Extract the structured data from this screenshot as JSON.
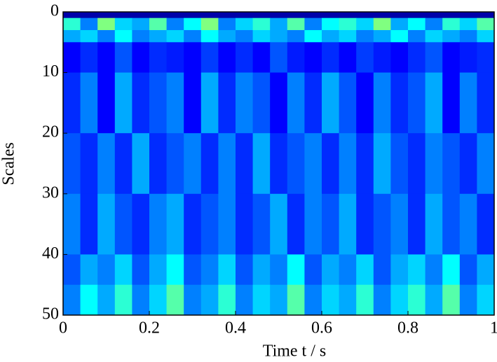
{
  "chart_data": {
    "type": "heatmap",
    "xlabel": "Time t / s",
    "ylabel": "Scales",
    "xlim": [
      0,
      1
    ],
    "xticks": [
      0,
      0.2,
      0.4,
      0.6,
      0.8,
      1
    ],
    "ylim": [
      50,
      0
    ],
    "yticks": [
      0,
      10,
      20,
      30,
      40,
      50
    ],
    "colormap": "jet",
    "zlim": [
      0,
      1.2
    ],
    "xbins": [
      0,
      0.04,
      0.08,
      0.12,
      0.16,
      0.2,
      0.24,
      0.28,
      0.32,
      0.36,
      0.4,
      0.44,
      0.48,
      0.52,
      0.56,
      0.6,
      0.64,
      0.68,
      0.72,
      0.76,
      0.8,
      0.84,
      0.88,
      0.92,
      0.96,
      1
    ],
    "ybins": [
      0,
      1,
      3,
      5,
      10,
      20,
      30,
      40,
      45,
      50
    ],
    "z": [
      [
        0.05,
        0.05,
        0.05,
        0.05,
        0.05,
        0.05,
        0.05,
        0.05,
        0.05,
        0.05,
        0.05,
        0.05,
        0.05,
        0.05,
        0.05,
        0.05,
        0.05,
        0.05,
        0.05,
        0.05,
        0.05,
        0.05,
        0.05,
        0.05,
        0.05
      ],
      [
        0.5,
        0.3,
        0.6,
        0.4,
        0.35,
        0.55,
        0.3,
        0.45,
        0.6,
        0.3,
        0.4,
        0.5,
        0.35,
        0.55,
        0.3,
        0.45,
        0.5,
        0.4,
        0.6,
        0.35,
        0.45,
        0.3,
        0.5,
        0.4,
        0.55
      ],
      [
        0.35,
        0.4,
        0.3,
        0.45,
        0.3,
        0.35,
        0.4,
        0.3,
        0.45,
        0.35,
        0.3,
        0.4,
        0.35,
        0.3,
        0.45,
        0.35,
        0.4,
        0.3,
        0.35,
        0.45,
        0.3,
        0.4,
        0.35,
        0.3,
        0.4
      ],
      [
        0.15,
        0.2,
        0.15,
        0.25,
        0.15,
        0.2,
        0.18,
        0.15,
        0.22,
        0.15,
        0.2,
        0.15,
        0.25,
        0.18,
        0.15,
        0.2,
        0.15,
        0.22,
        0.18,
        0.15,
        0.2,
        0.25,
        0.15,
        0.18,
        0.2
      ],
      [
        0.2,
        0.3,
        0.15,
        0.35,
        0.2,
        0.25,
        0.3,
        0.15,
        0.35,
        0.2,
        0.3,
        0.25,
        0.15,
        0.3,
        0.2,
        0.35,
        0.25,
        0.15,
        0.3,
        0.2,
        0.25,
        0.35,
        0.15,
        0.3,
        0.2
      ],
      [
        0.25,
        0.2,
        0.3,
        0.2,
        0.35,
        0.2,
        0.25,
        0.3,
        0.2,
        0.3,
        0.2,
        0.35,
        0.2,
        0.25,
        0.3,
        0.2,
        0.3,
        0.2,
        0.35,
        0.25,
        0.2,
        0.3,
        0.25,
        0.2,
        0.3
      ],
      [
        0.3,
        0.2,
        0.35,
        0.25,
        0.2,
        0.3,
        0.35,
        0.2,
        0.25,
        0.3,
        0.2,
        0.25,
        0.35,
        0.2,
        0.3,
        0.25,
        0.35,
        0.2,
        0.25,
        0.3,
        0.2,
        0.35,
        0.25,
        0.3,
        0.2
      ],
      [
        0.25,
        0.35,
        0.3,
        0.4,
        0.25,
        0.35,
        0.45,
        0.25,
        0.3,
        0.4,
        0.25,
        0.35,
        0.3,
        0.45,
        0.25,
        0.35,
        0.3,
        0.4,
        0.25,
        0.35,
        0.4,
        0.3,
        0.45,
        0.25,
        0.35
      ],
      [
        0.3,
        0.45,
        0.35,
        0.5,
        0.3,
        0.4,
        0.55,
        0.3,
        0.35,
        0.5,
        0.3,
        0.4,
        0.35,
        0.55,
        0.3,
        0.4,
        0.35,
        0.5,
        0.3,
        0.4,
        0.5,
        0.35,
        0.55,
        0.3,
        0.4
      ]
    ]
  }
}
